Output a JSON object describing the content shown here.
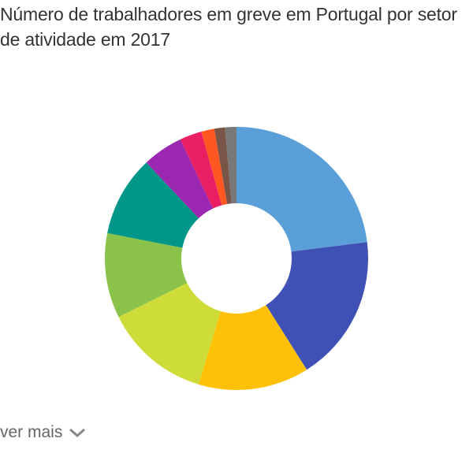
{
  "chart_data": {
    "type": "donut",
    "title": "Número de trabalhadores em greve em Portugal por setor de atividade em 2017",
    "values": [
      23,
      18,
      13.6,
      13,
      10.4,
      9.9,
      5,
      2.7,
      1.6,
      1.3,
      1.4
    ],
    "colors": [
      "#5a9fd8",
      "#3f51b5",
      "#ffc107",
      "#cddc39",
      "#8bc34a",
      "#009688",
      "#9c27b0",
      "#e91e63",
      "#ff5722",
      "#795548",
      "#787878"
    ]
  },
  "more_link": "ver mais"
}
